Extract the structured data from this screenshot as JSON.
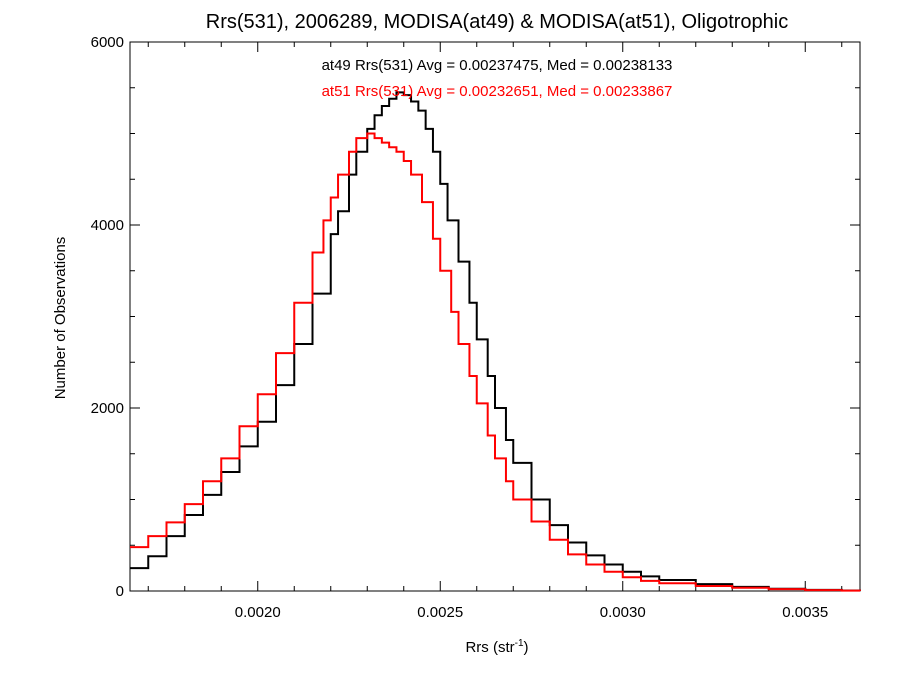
{
  "chart_data": {
    "type": "line",
    "title": "Rrs(531), 2006289, MODISA(at49) & MODISA(at51), Oligotrophic",
    "xlabel": "Rrs (str",
    "xlabel_superscript": "-1",
    "xlabel_suffix": ")",
    "ylabel": "Number of Observations",
    "xlim": [
      0.00165,
      0.00365
    ],
    "ylim": [
      0,
      6000
    ],
    "x_ticks": [
      {
        "value": 0.002,
        "label": "0.0020"
      },
      {
        "value": 0.0025,
        "label": "0.0025"
      },
      {
        "value": 0.003,
        "label": "0.0030"
      },
      {
        "value": 0.0035,
        "label": "0.0035"
      }
    ],
    "y_ticks": [
      {
        "value": 0,
        "label": "0"
      },
      {
        "value": 2000,
        "label": "2000"
      },
      {
        "value": 4000,
        "label": "4000"
      },
      {
        "value": 6000,
        "label": "6000"
      }
    ],
    "grid": false,
    "annotations": [
      {
        "text": "at49 Rrs(531) Avg = 0.00237475, Med = 0.00238133",
        "color": "#000000"
      },
      {
        "text": "at51 Rrs(531) Avg = 0.00232651, Med = 0.00233867",
        "color": "#ff0000"
      }
    ],
    "series": [
      {
        "color": "#000000",
        "x": [
          0.00165,
          0.0017,
          0.00175,
          0.0018,
          0.00185,
          0.0019,
          0.00195,
          0.002,
          0.00205,
          0.0021,
          0.00215,
          0.0022,
          0.00222,
          0.00225,
          0.00227,
          0.0023,
          0.00232,
          0.00234,
          0.00236,
          0.00238,
          0.0024,
          0.00242,
          0.00244,
          0.00246,
          0.00248,
          0.0025,
          0.00252,
          0.00255,
          0.00258,
          0.0026,
          0.00263,
          0.00265,
          0.00268,
          0.0027,
          0.00275,
          0.0028,
          0.00285,
          0.0029,
          0.00295,
          0.003,
          0.00305,
          0.0031,
          0.0032,
          0.0033,
          0.0034,
          0.0035,
          0.0036,
          0.00365
        ],
        "y": [
          250,
          380,
          600,
          830,
          1050,
          1300,
          1580,
          1850,
          2250,
          2700,
          3250,
          3900,
          4150,
          4550,
          4800,
          5050,
          5200,
          5300,
          5380,
          5450,
          5420,
          5350,
          5250,
          5050,
          4800,
          4450,
          4050,
          3600,
          3150,
          2750,
          2350,
          2000,
          1650,
          1400,
          1000,
          720,
          530,
          390,
          290,
          210,
          160,
          120,
          75,
          45,
          25,
          12,
          5,
          2
        ]
      },
      {
        "color": "#ff0000",
        "x": [
          0.00165,
          0.0017,
          0.00175,
          0.0018,
          0.00185,
          0.0019,
          0.00195,
          0.002,
          0.00205,
          0.0021,
          0.00215,
          0.00218,
          0.0022,
          0.00222,
          0.00225,
          0.00227,
          0.0023,
          0.00232,
          0.00234,
          0.00236,
          0.00238,
          0.0024,
          0.00242,
          0.00245,
          0.00248,
          0.0025,
          0.00253,
          0.00255,
          0.00258,
          0.0026,
          0.00263,
          0.00265,
          0.00268,
          0.0027,
          0.00275,
          0.0028,
          0.00285,
          0.0029,
          0.00295,
          0.003,
          0.00305,
          0.0031,
          0.0032,
          0.0033,
          0.0034,
          0.0035,
          0.0036,
          0.00365
        ],
        "y": [
          480,
          600,
          750,
          950,
          1200,
          1450,
          1800,
          2150,
          2600,
          3150,
          3700,
          4050,
          4300,
          4550,
          4800,
          4950,
          5000,
          4950,
          4900,
          4850,
          4800,
          4700,
          4550,
          4250,
          3850,
          3500,
          3050,
          2700,
          2350,
          2050,
          1700,
          1450,
          1200,
          1000,
          760,
          560,
          400,
          290,
          210,
          150,
          110,
          85,
          55,
          35,
          20,
          10,
          4,
          2
        ]
      }
    ]
  }
}
